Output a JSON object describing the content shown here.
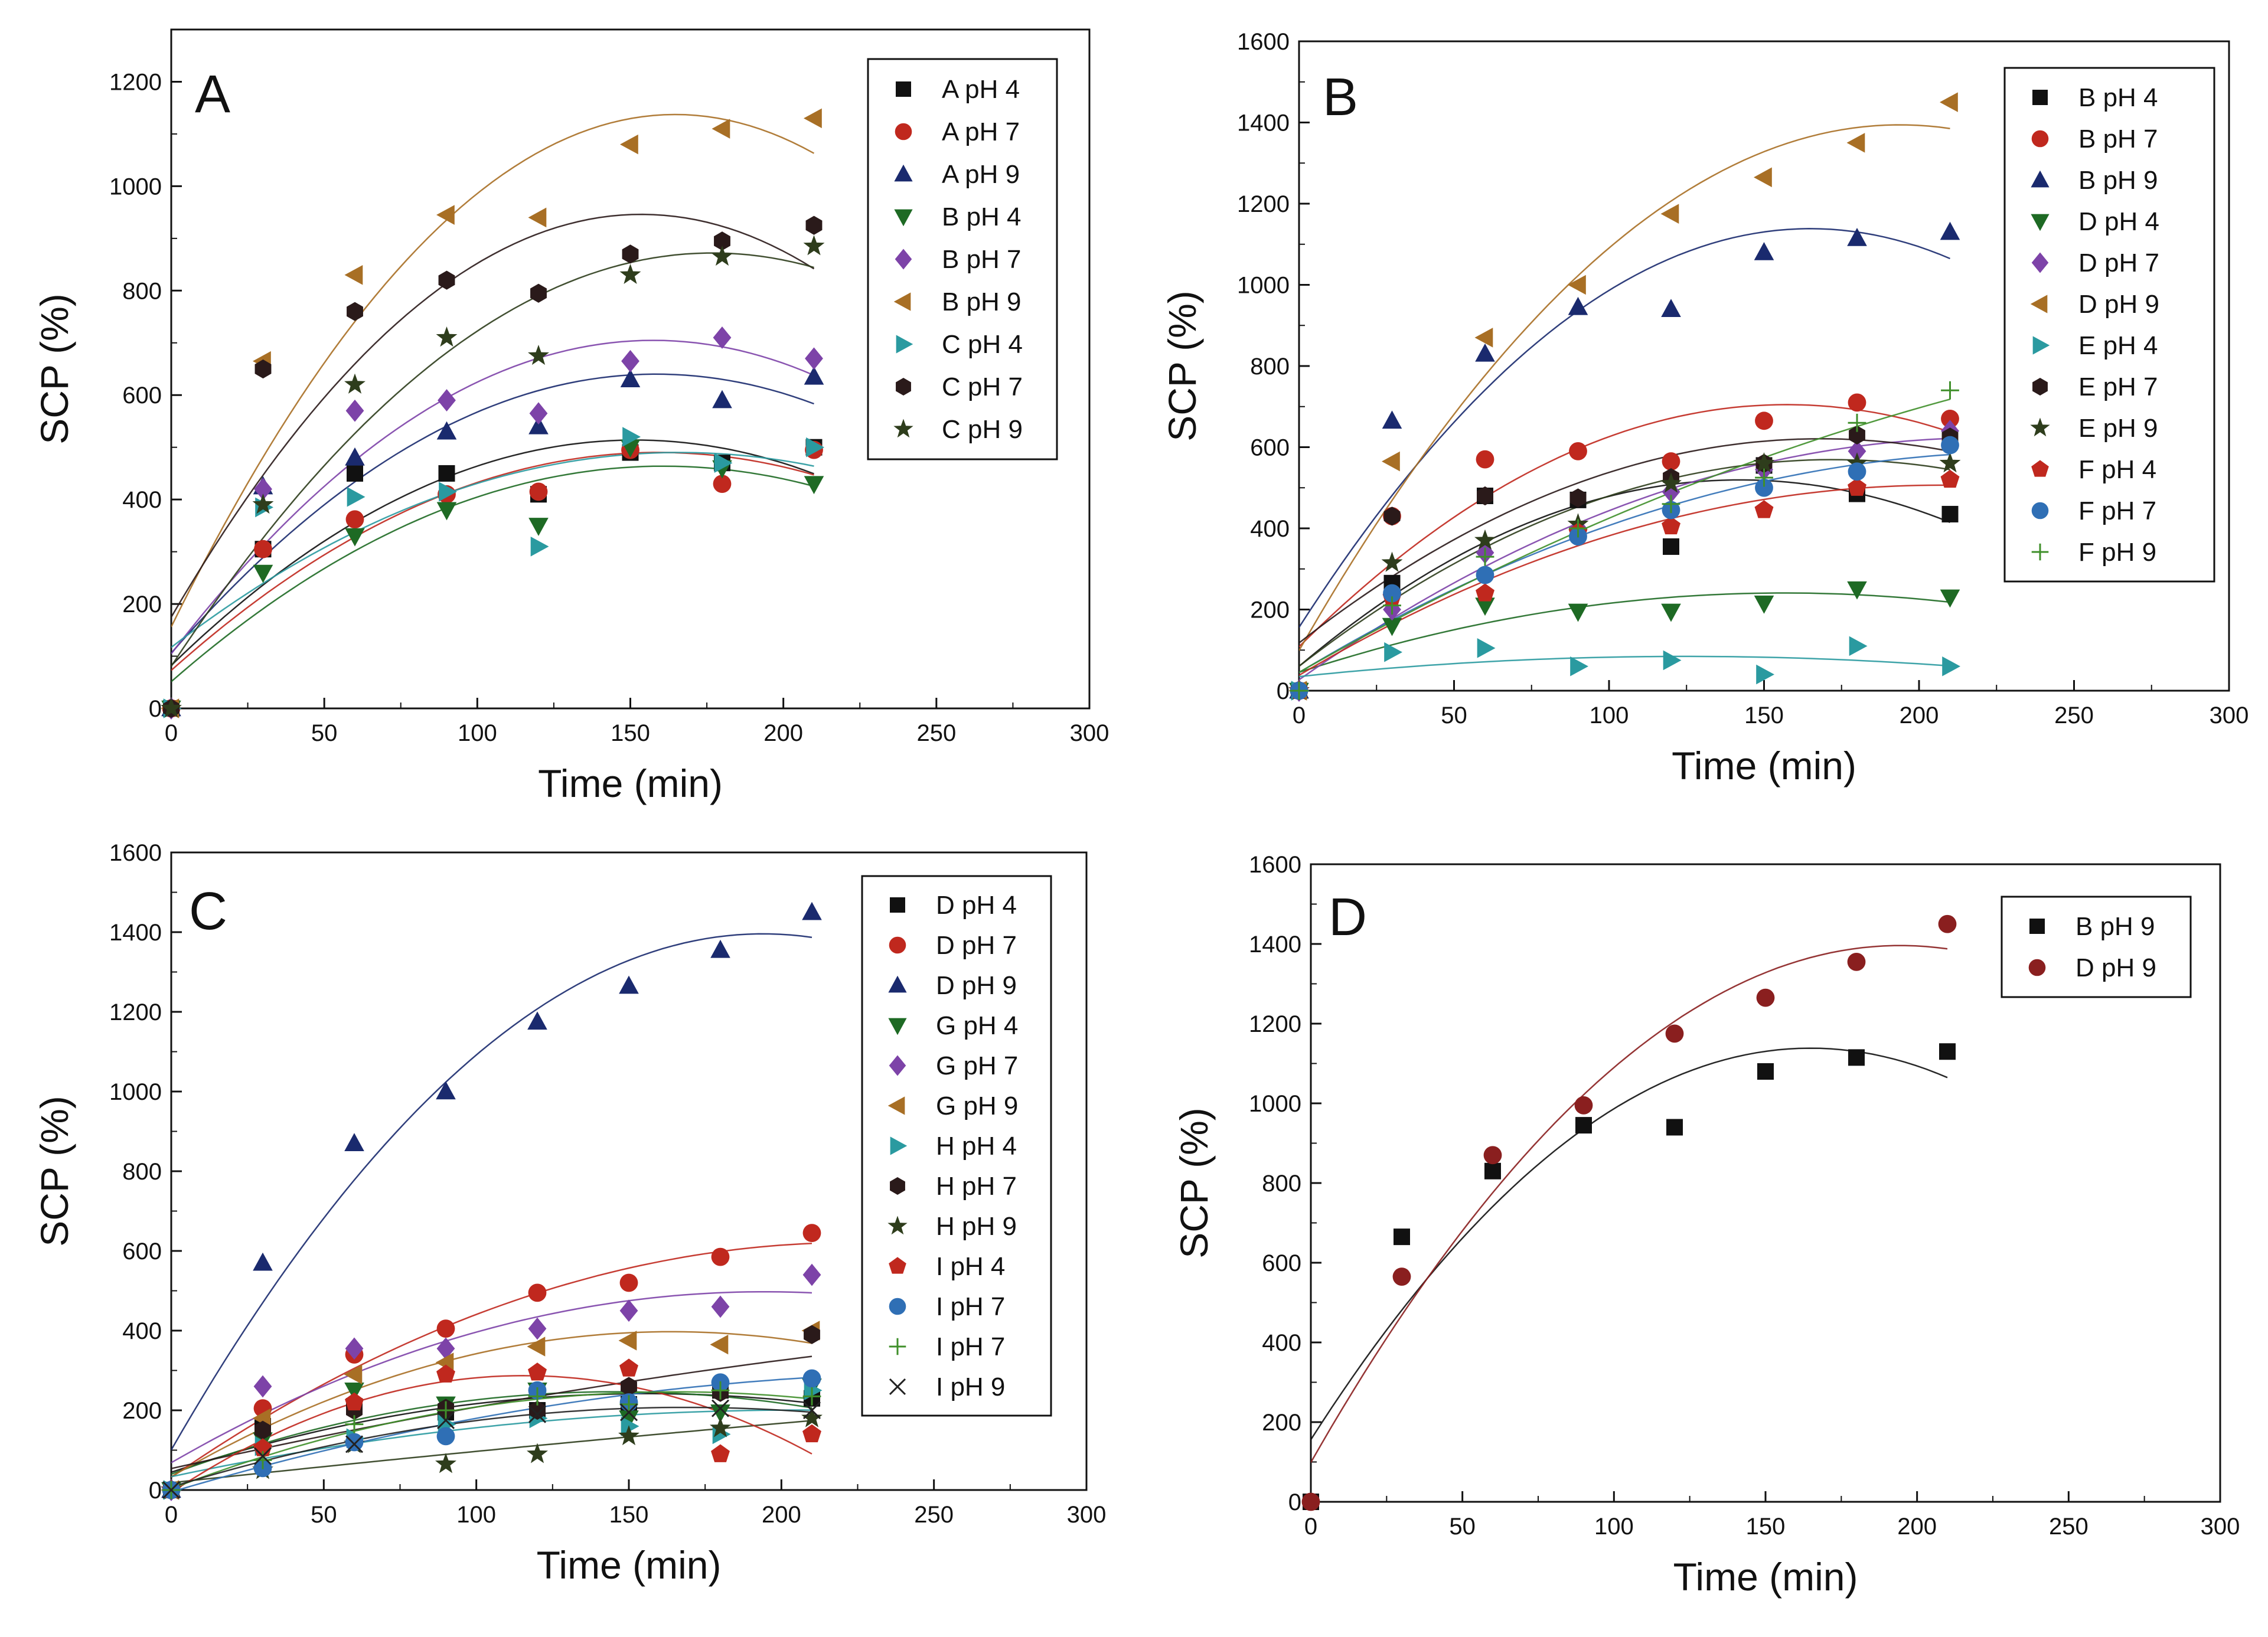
{
  "chart_data": [
    {
      "type": "scatter",
      "panel_label": "A",
      "xlabel": "Time (min)",
      "ylabel": "SCP (%)",
      "xlim": [
        0,
        300
      ],
      "ylim": [
        0,
        1300
      ],
      "xticks": [
        0,
        50,
        100,
        150,
        200,
        250,
        300
      ],
      "yticks": [
        0,
        200,
        400,
        600,
        800,
        1000,
        1200
      ],
      "x": [
        0,
        30,
        60,
        90,
        120,
        150,
        180,
        210
      ],
      "legend_position": "top-right",
      "series": [
        {
          "name": "A pH 4",
          "marker": "square",
          "color": "#111111",
          "values": [
            0,
            305,
            450,
            450,
            410,
            490,
            470,
            500
          ]
        },
        {
          "name": "A pH 7",
          "marker": "circle",
          "color": "#c0281e",
          "values": [
            0,
            305,
            362,
            410,
            415,
            495,
            430,
            495
          ]
        },
        {
          "name": "A pH 9",
          "marker": "triangle-up",
          "color": "#1a2a6e",
          "values": [
            0,
            425,
            480,
            530,
            540,
            630,
            590,
            635
          ]
        },
        {
          "name": "B pH 4",
          "marker": "triangle-down",
          "color": "#1e6a24",
          "values": [
            0,
            260,
            330,
            380,
            350,
            500,
            460,
            430
          ]
        },
        {
          "name": "B pH 7",
          "marker": "diamond",
          "color": "#7d43a8",
          "values": [
            0,
            420,
            570,
            590,
            565,
            665,
            710,
            670
          ]
        },
        {
          "name": "B pH 9",
          "marker": "triangle-left",
          "color": "#a86f25",
          "values": [
            0,
            665,
            830,
            945,
            940,
            1080,
            1110,
            1130
          ]
        },
        {
          "name": "C pH 4",
          "marker": "triangle-right",
          "color": "#2a9aa0",
          "values": [
            0,
            385,
            405,
            415,
            310,
            520,
            470,
            500
          ]
        },
        {
          "name": "C pH 7",
          "marker": "hexagon",
          "color": "#2a1a1a",
          "values": [
            0,
            650,
            760,
            820,
            795,
            870,
            895,
            925
          ]
        },
        {
          "name": "C pH 9",
          "marker": "star",
          "color": "#2e3d1c",
          "values": [
            0,
            390,
            620,
            710,
            675,
            830,
            865,
            885
          ]
        }
      ]
    },
    {
      "type": "scatter",
      "panel_label": "B",
      "xlabel": "Time (min)",
      "ylabel": "SCP (%)",
      "xlim": [
        0,
        300
      ],
      "ylim": [
        0,
        1600
      ],
      "xticks": [
        0,
        50,
        100,
        150,
        200,
        250,
        300
      ],
      "yticks": [
        0,
        200,
        400,
        600,
        800,
        1000,
        1200,
        1400,
        1600
      ],
      "x": [
        0,
        30,
        60,
        90,
        120,
        150,
        180,
        210
      ],
      "legend_position": "top-right",
      "series": [
        {
          "name": "B pH 4",
          "marker": "square",
          "color": "#111111",
          "values": [
            0,
            265,
            480,
            470,
            355,
            555,
            485,
            435
          ]
        },
        {
          "name": "B pH 7",
          "marker": "circle",
          "color": "#c0281e",
          "values": [
            0,
            430,
            570,
            590,
            565,
            665,
            710,
            670
          ]
        },
        {
          "name": "B pH 9",
          "marker": "triangle-up",
          "color": "#1a2a6e",
          "values": [
            0,
            665,
            830,
            945,
            940,
            1080,
            1115,
            1130
          ]
        },
        {
          "name": "D pH 4",
          "marker": "triangle-down",
          "color": "#1e6a24",
          "values": [
            0,
            160,
            210,
            195,
            195,
            215,
            250,
            230
          ]
        },
        {
          "name": "D pH 7",
          "marker": "diamond",
          "color": "#7d43a8",
          "values": [
            0,
            200,
            340,
            400,
            490,
            545,
            590,
            640
          ]
        },
        {
          "name": "D pH 9",
          "marker": "triangle-left",
          "color": "#a86f25",
          "values": [
            0,
            565,
            870,
            1000,
            1175,
            1265,
            1350,
            1450
          ]
        },
        {
          "name": "E pH 4",
          "marker": "triangle-right",
          "color": "#2a9aa0",
          "values": [
            0,
            95,
            105,
            60,
            75,
            40,
            110,
            60
          ]
        },
        {
          "name": "E pH 7",
          "marker": "hexagon",
          "color": "#2a1a1a",
          "values": [
            0,
            430,
            480,
            475,
            525,
            560,
            630,
            625
          ]
        },
        {
          "name": "E pH 9",
          "marker": "star",
          "color": "#2e3d1c",
          "values": [
            0,
            315,
            370,
            410,
            510,
            560,
            560,
            560
          ]
        },
        {
          "name": "F pH 4",
          "marker": "pentagon",
          "color": "#c0281e",
          "values": [
            0,
            230,
            240,
            390,
            405,
            445,
            500,
            520
          ]
        },
        {
          "name": "F pH 7",
          "marker": "circle",
          "color": "#2f6fb5",
          "values": [
            0,
            240,
            285,
            380,
            445,
            500,
            540,
            605
          ]
        },
        {
          "name": "F pH 9",
          "marker": "plus",
          "color": "#3f8f2a",
          "values": [
            0,
            210,
            330,
            400,
            460,
            525,
            660,
            740
          ]
        }
      ]
    },
    {
      "type": "scatter",
      "panel_label": "C",
      "xlabel": "Time (min)",
      "ylabel": "SCP (%)",
      "xlim": [
        0,
        300
      ],
      "ylim": [
        0,
        1600
      ],
      "xticks": [
        0,
        50,
        100,
        150,
        200,
        250,
        300
      ],
      "yticks": [
        0,
        200,
        400,
        600,
        800,
        1000,
        1200,
        1400,
        1600
      ],
      "x": [
        0,
        30,
        60,
        90,
        120,
        150,
        180,
        210
      ],
      "legend_position": "top-right",
      "series": [
        {
          "name": "D pH 4",
          "marker": "square",
          "color": "#111111",
          "values": [
            0,
            160,
            210,
            195,
            200,
            215,
            250,
            230
          ]
        },
        {
          "name": "D pH 7",
          "marker": "circle",
          "color": "#c0281e",
          "values": [
            0,
            205,
            340,
            405,
            495,
            520,
            585,
            645
          ]
        },
        {
          "name": "D pH 9",
          "marker": "triangle-up",
          "color": "#1a2a6e",
          "values": [
            0,
            570,
            870,
            1000,
            1175,
            1265,
            1355,
            1450
          ]
        },
        {
          "name": "G pH 4",
          "marker": "triangle-down",
          "color": "#1e6a24",
          "values": [
            0,
            125,
            250,
            215,
            250,
            180,
            195,
            260
          ]
        },
        {
          "name": "G pH 7",
          "marker": "diamond",
          "color": "#7d43a8",
          "values": [
            0,
            260,
            355,
            355,
            405,
            450,
            460,
            540
          ]
        },
        {
          "name": "G pH 9",
          "marker": "triangle-left",
          "color": "#a86f25",
          "values": [
            0,
            180,
            290,
            320,
            360,
            375,
            365,
            400
          ]
        },
        {
          "name": "H pH 4",
          "marker": "triangle-right",
          "color": "#2a9aa0",
          "values": [
            0,
            110,
            130,
            165,
            180,
            160,
            140,
            250
          ]
        },
        {
          "name": "H pH 7",
          "marker": "hexagon",
          "color": "#2a1a1a",
          "values": [
            0,
            150,
            200,
            205,
            200,
            260,
            245,
            390
          ]
        },
        {
          "name": "H pH 9",
          "marker": "star",
          "color": "#2e3d1c",
          "values": [
            0,
            50,
            115,
            65,
            90,
            135,
            155,
            180
          ]
        },
        {
          "name": "I pH 4",
          "marker": "pentagon",
          "color": "#c0281e",
          "values": [
            0,
            105,
            220,
            290,
            295,
            305,
            90,
            140
          ]
        },
        {
          "name": "I pH 7",
          "marker": "circle",
          "color": "#2f6fb5",
          "values": [
            0,
            55,
            120,
            135,
            250,
            220,
            270,
            280
          ]
        },
        {
          "name": "I pH 7",
          "marker": "plus",
          "color": "#3f8f2a",
          "values": [
            0,
            75,
            165,
            200,
            235,
            215,
            250,
            235
          ]
        },
        {
          "name": "I pH 9",
          "marker": "x",
          "color": "#222222",
          "values": [
            0,
            85,
            115,
            175,
            190,
            195,
            205,
            200
          ]
        }
      ]
    },
    {
      "type": "scatter",
      "panel_label": "D",
      "xlabel": "Time (min)",
      "ylabel": "SCP (%)",
      "xlim": [
        0,
        300
      ],
      "ylim": [
        0,
        1600
      ],
      "xticks": [
        0,
        50,
        100,
        150,
        200,
        250,
        300
      ],
      "yticks": [
        0,
        200,
        400,
        600,
        800,
        1000,
        1200,
        1400,
        1600
      ],
      "x": [
        0,
        30,
        60,
        90,
        120,
        150,
        180,
        210
      ],
      "legend_position": "top-right",
      "series": [
        {
          "name": "B pH 9",
          "marker": "square",
          "color": "#111111",
          "values": [
            0,
            665,
            830,
            945,
            940,
            1080,
            1115,
            1130
          ]
        },
        {
          "name": "D pH 9",
          "marker": "circle",
          "color": "#8a1f1f",
          "values": [
            0,
            565,
            870,
            995,
            1175,
            1265,
            1355,
            1450
          ]
        }
      ]
    }
  ]
}
